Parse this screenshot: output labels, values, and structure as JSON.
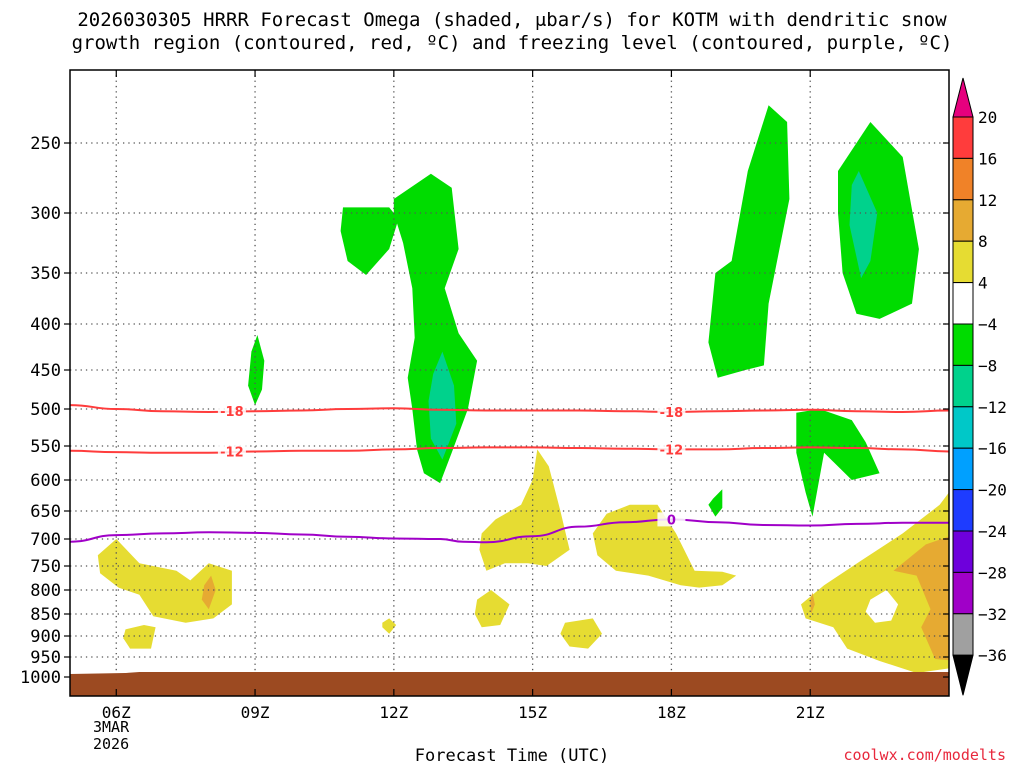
{
  "title_line1": "2026030305 HRRR Forecast Omega (shaded, μbar/s) for KOTM with dendritic snow",
  "title_line2": "growth region (contoured, red, ºC) and freezing level (contoured, purple, ºC)",
  "credit": "coolwx.com/modelts",
  "chart_data": {
    "type": "time-height cross section",
    "title": "2026030305 HRRR Forecast Omega (shaded, μbar/s) for KOTM with dendritic snow growth region (contoured, red, ºC) and freezing level (contoured, purple, ºC)",
    "xlabel": "Forecast Time (UTC)",
    "ylabel": "",
    "x_range_hours_utc": [
      5,
      24
    ],
    "x_ticks": [
      "06Z",
      "09Z",
      "12Z",
      "15Z",
      "18Z",
      "21Z"
    ],
    "x_tick_hours": [
      6,
      9,
      12,
      15,
      18,
      21
    ],
    "first_tick_date": [
      "3MAR",
      "2026"
    ],
    "y_ticks_mb": [
      250,
      300,
      350,
      400,
      450,
      500,
      550,
      600,
      650,
      700,
      750,
      800,
      850,
      900,
      950,
      1000
    ],
    "y_range_mb": [
      200,
      1020
    ],
    "y_axis": "pressure, inverted (log-like)",
    "grid": true,
    "surface_terrain_color": "#9c4a21",
    "colorbar": {
      "labels": [
        "20",
        "16",
        "12",
        "8",
        "4",
        "−4",
        "−8",
        "−12",
        "−16",
        "−20",
        "−24",
        "−28",
        "−32",
        "−36"
      ],
      "bins": [
        {
          "range": "> 20",
          "color": "#e6007e"
        },
        {
          "range": "16 to 20",
          "color": "#ff3c3c"
        },
        {
          "range": "12 to 16",
          "color": "#f08228"
        },
        {
          "range": "8 to 12",
          "color": "#e6aa32"
        },
        {
          "range": "4 to 8",
          "color": "#e6dc32"
        },
        {
          "range": "-4 to 4",
          "color": "#ffffff"
        },
        {
          "range": "-8 to -4",
          "color": "#00dc00"
        },
        {
          "range": "-12 to -8",
          "color": "#00d28c"
        },
        {
          "range": "-16 to -12",
          "color": "#00c8c8"
        },
        {
          "range": "-20 to -16",
          "color": "#00a0ff"
        },
        {
          "range": "-24 to -20",
          "color": "#1e3cff"
        },
        {
          "range": "-28 to -24",
          "color": "#6e00dc"
        },
        {
          "range": "-32 to -28",
          "color": "#a000c8"
        },
        {
          "range": "-36 to -32",
          "color": "#a0a0a0"
        },
        {
          "range": "< -36",
          "color": "#000000"
        }
      ]
    },
    "omega_regions": [
      {
        "hour": 9.0,
        "level_mb": 450,
        "value": "-4 to -8",
        "color": "#00dc00"
      },
      {
        "hour": 11.5,
        "level_mb": 320,
        "value": "-4 to -8",
        "color": "#00dc00"
      },
      {
        "hour": 13.0,
        "level_mb": 420,
        "value": "-4 to -8",
        "color": "#00dc00"
      },
      {
        "hour": 13.0,
        "level_mb": 500,
        "value": "-8 to -12",
        "color": "#00d28c"
      },
      {
        "hour": 19.8,
        "level_mb": 330,
        "value": "-4 to -8",
        "color": "#00dc00"
      },
      {
        "hour": 22.4,
        "level_mb": 300,
        "value": "-4 to -8",
        "color": "#00dc00"
      },
      {
        "hour": 22.0,
        "level_mb": 300,
        "value": "-8 to -12",
        "color": "#00d28c"
      },
      {
        "hour": 21.8,
        "level_mb": 570,
        "value": "-4 to -8",
        "color": "#00dc00"
      },
      {
        "hour": 19.0,
        "level_mb": 640,
        "value": "-4 to -8",
        "color": "#00dc00"
      },
      {
        "hour": 7.0,
        "level_mb": 800,
        "value": "4 to 8",
        "color": "#e6dc32"
      },
      {
        "hour": 8.0,
        "level_mb": 810,
        "value": "8 to 12",
        "color": "#e6aa32"
      },
      {
        "hour": 14.8,
        "level_mb": 650,
        "value": "4 to 8",
        "color": "#e6dc32"
      },
      {
        "hour": 17.5,
        "level_mb": 720,
        "value": "4 to 8",
        "color": "#e6dc32"
      },
      {
        "hour": 14.0,
        "level_mb": 850,
        "value": "4 to 8",
        "color": "#e6dc32"
      },
      {
        "hour": 16.0,
        "level_mb": 880,
        "value": "4 to 8",
        "color": "#e6dc32"
      },
      {
        "hour": 12.0,
        "level_mb": 870,
        "value": "4 to 8",
        "color": "#e6dc32"
      },
      {
        "hour": 22.3,
        "level_mb": 830,
        "value": "4 to 8",
        "color": "#e6dc32"
      },
      {
        "hour": 23.3,
        "level_mb": 760,
        "value": "8 to 12",
        "color": "#e6aa32"
      }
    ],
    "contours": [
      {
        "label": "-18",
        "color": "#ff3c3c",
        "hours": [
          5,
          6,
          7,
          8,
          9,
          10,
          11,
          12,
          13,
          14,
          15,
          16,
          17,
          18,
          19,
          20,
          21,
          22,
          23,
          24
        ],
        "levels_mb": [
          495,
          500,
          503,
          504,
          503,
          502,
          500,
          499,
          501,
          502,
          502,
          502,
          503,
          504,
          503,
          502,
          501,
          503,
          504,
          502
        ]
      },
      {
        "label": "-12",
        "color": "#ff3c3c",
        "hours": [
          5,
          6,
          7,
          8,
          9,
          10,
          11,
          12,
          13,
          14,
          15,
          16,
          17,
          18,
          19,
          20,
          21,
          22,
          23,
          24
        ],
        "levels_mb": [
          557,
          559,
          560,
          560,
          558,
          557,
          557,
          555,
          553,
          552,
          552,
          553,
          554,
          555,
          555,
          553,
          552,
          553,
          555,
          558
        ]
      },
      {
        "label": "0",
        "color": "#a000c8",
        "hours": [
          5,
          6,
          7,
          8,
          9,
          10,
          11,
          12,
          13,
          13.5,
          14,
          15,
          16,
          17,
          18,
          19,
          20,
          21,
          22,
          23,
          24
        ],
        "levels_mb": [
          705,
          693,
          690,
          688,
          689,
          692,
          696,
          699,
          700,
          705,
          706,
          695,
          678,
          670,
          665,
          670,
          675,
          676,
          673,
          671,
          671
        ]
      }
    ]
  }
}
